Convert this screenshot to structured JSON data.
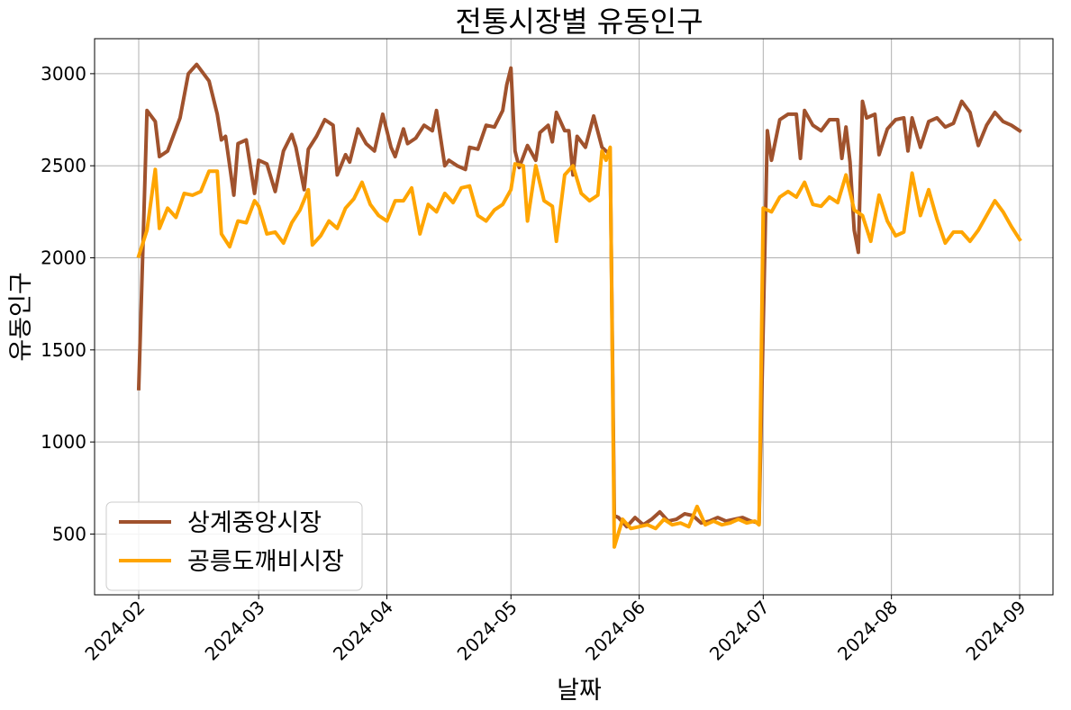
{
  "chart_data": {
    "type": "line",
    "title": "전통시장별 유동인구",
    "xlabel": "날짜",
    "ylabel": "유동인구",
    "x_range": [
      "2024-02-01",
      "2024-09-01"
    ],
    "ylim": [
      170,
      3190
    ],
    "grid": true,
    "legend_position": "lower-left",
    "x_ticks": [
      "2024-02",
      "2024-03",
      "2024-04",
      "2024-05",
      "2024-06",
      "2024-07",
      "2024-08",
      "2024-09"
    ],
    "y_ticks": [
      500,
      1000,
      1500,
      2000,
      2500,
      3000
    ],
    "series": [
      {
        "name": "상계중앙시장",
        "color": "#a0522d",
        "points": [
          [
            "2024-02-01",
            1290
          ],
          [
            "2024-02-03",
            2800
          ],
          [
            "2024-02-05",
            2740
          ],
          [
            "2024-02-06",
            2550
          ],
          [
            "2024-02-08",
            2580
          ],
          [
            "2024-02-11",
            2760
          ],
          [
            "2024-02-13",
            3000
          ],
          [
            "2024-02-15",
            3050
          ],
          [
            "2024-02-18",
            2960
          ],
          [
            "2024-02-20",
            2780
          ],
          [
            "2024-02-21",
            2640
          ],
          [
            "2024-02-22",
            2660
          ],
          [
            "2024-02-24",
            2340
          ],
          [
            "2024-02-25",
            2620
          ],
          [
            "2024-02-27",
            2640
          ],
          [
            "2024-02-29",
            2350
          ],
          [
            "2024-03-01",
            2530
          ],
          [
            "2024-03-03",
            2510
          ],
          [
            "2024-03-05",
            2360
          ],
          [
            "2024-03-07",
            2580
          ],
          [
            "2024-03-09",
            2670
          ],
          [
            "2024-03-10",
            2600
          ],
          [
            "2024-03-12",
            2370
          ],
          [
            "2024-03-13",
            2590
          ],
          [
            "2024-03-15",
            2660
          ],
          [
            "2024-03-17",
            2750
          ],
          [
            "2024-03-19",
            2720
          ],
          [
            "2024-03-20",
            2450
          ],
          [
            "2024-03-22",
            2560
          ],
          [
            "2024-03-23",
            2520
          ],
          [
            "2024-03-25",
            2700
          ],
          [
            "2024-03-27",
            2620
          ],
          [
            "2024-03-29",
            2580
          ],
          [
            "2024-03-31",
            2780
          ],
          [
            "2024-04-02",
            2600
          ],
          [
            "2024-04-03",
            2550
          ],
          [
            "2024-04-05",
            2700
          ],
          [
            "2024-04-06",
            2620
          ],
          [
            "2024-04-08",
            2650
          ],
          [
            "2024-04-10",
            2720
          ],
          [
            "2024-04-12",
            2690
          ],
          [
            "2024-04-13",
            2800
          ],
          [
            "2024-04-15",
            2500
          ],
          [
            "2024-04-16",
            2530
          ],
          [
            "2024-04-18",
            2500
          ],
          [
            "2024-04-20",
            2480
          ],
          [
            "2024-04-21",
            2600
          ],
          [
            "2024-04-23",
            2590
          ],
          [
            "2024-04-25",
            2720
          ],
          [
            "2024-04-27",
            2710
          ],
          [
            "2024-04-29",
            2800
          ],
          [
            "2024-04-30",
            2940
          ],
          [
            "2024-05-01",
            3030
          ],
          [
            "2024-05-02",
            2580
          ],
          [
            "2024-05-03",
            2490
          ],
          [
            "2024-05-05",
            2610
          ],
          [
            "2024-05-07",
            2530
          ],
          [
            "2024-05-08",
            2680
          ],
          [
            "2024-05-10",
            2720
          ],
          [
            "2024-05-11",
            2630
          ],
          [
            "2024-05-12",
            2790
          ],
          [
            "2024-05-14",
            2690
          ],
          [
            "2024-05-15",
            2690
          ],
          [
            "2024-05-16",
            2450
          ],
          [
            "2024-05-17",
            2660
          ],
          [
            "2024-05-19",
            2600
          ],
          [
            "2024-05-21",
            2770
          ],
          [
            "2024-05-23",
            2600
          ],
          [
            "2024-05-24",
            2580
          ],
          [
            "2024-05-25",
            2560
          ],
          [
            "2024-05-26",
            600
          ],
          [
            "2024-05-27",
            590
          ],
          [
            "2024-05-29",
            540
          ],
          [
            "2024-05-31",
            590
          ],
          [
            "2024-06-02",
            550
          ],
          [
            "2024-06-04",
            580
          ],
          [
            "2024-06-06",
            620
          ],
          [
            "2024-06-08",
            570
          ],
          [
            "2024-06-10",
            580
          ],
          [
            "2024-06-12",
            610
          ],
          [
            "2024-06-14",
            600
          ],
          [
            "2024-06-16",
            560
          ],
          [
            "2024-06-18",
            570
          ],
          [
            "2024-06-20",
            590
          ],
          [
            "2024-06-22",
            570
          ],
          [
            "2024-06-24",
            580
          ],
          [
            "2024-06-26",
            590
          ],
          [
            "2024-06-28",
            570
          ],
          [
            "2024-06-30",
            560
          ],
          [
            "2024-07-02",
            2690
          ],
          [
            "2024-07-03",
            2530
          ],
          [
            "2024-07-05",
            2750
          ],
          [
            "2024-07-07",
            2780
          ],
          [
            "2024-07-09",
            2780
          ],
          [
            "2024-07-10",
            2540
          ],
          [
            "2024-07-11",
            2800
          ],
          [
            "2024-07-13",
            2720
          ],
          [
            "2024-07-15",
            2690
          ],
          [
            "2024-07-17",
            2750
          ],
          [
            "2024-07-19",
            2750
          ],
          [
            "2024-07-20",
            2540
          ],
          [
            "2024-07-21",
            2710
          ],
          [
            "2024-07-22",
            2520
          ],
          [
            "2024-07-23",
            2150
          ],
          [
            "2024-07-24",
            2030
          ],
          [
            "2024-07-25",
            2850
          ],
          [
            "2024-07-26",
            2760
          ],
          [
            "2024-07-28",
            2780
          ],
          [
            "2024-07-29",
            2560
          ],
          [
            "2024-07-31",
            2700
          ],
          [
            "2024-08-02",
            2750
          ],
          [
            "2024-08-04",
            2760
          ],
          [
            "2024-08-05",
            2580
          ],
          [
            "2024-08-06",
            2760
          ],
          [
            "2024-08-08",
            2600
          ],
          [
            "2024-08-10",
            2740
          ],
          [
            "2024-08-12",
            2760
          ],
          [
            "2024-08-14",
            2710
          ],
          [
            "2024-08-16",
            2730
          ],
          [
            "2024-08-18",
            2850
          ],
          [
            "2024-08-20",
            2790
          ],
          [
            "2024-08-22",
            2610
          ],
          [
            "2024-08-24",
            2720
          ],
          [
            "2024-08-26",
            2790
          ],
          [
            "2024-08-28",
            2740
          ],
          [
            "2024-08-30",
            2720
          ],
          [
            "2024-09-01",
            2690
          ]
        ]
      },
      {
        "name": "공릉도깨비시장",
        "color": "#ffa500",
        "points": [
          [
            "2024-02-01",
            2010
          ],
          [
            "2024-02-03",
            2150
          ],
          [
            "2024-02-05",
            2480
          ],
          [
            "2024-02-06",
            2160
          ],
          [
            "2024-02-08",
            2270
          ],
          [
            "2024-02-10",
            2220
          ],
          [
            "2024-02-12",
            2350
          ],
          [
            "2024-02-14",
            2340
          ],
          [
            "2024-02-16",
            2360
          ],
          [
            "2024-02-18",
            2470
          ],
          [
            "2024-02-20",
            2470
          ],
          [
            "2024-02-21",
            2130
          ],
          [
            "2024-02-23",
            2060
          ],
          [
            "2024-02-25",
            2200
          ],
          [
            "2024-02-27",
            2190
          ],
          [
            "2024-02-29",
            2310
          ],
          [
            "2024-03-01",
            2280
          ],
          [
            "2024-03-03",
            2130
          ],
          [
            "2024-03-05",
            2140
          ],
          [
            "2024-03-07",
            2080
          ],
          [
            "2024-03-09",
            2190
          ],
          [
            "2024-03-11",
            2260
          ],
          [
            "2024-03-13",
            2370
          ],
          [
            "2024-03-14",
            2070
          ],
          [
            "2024-03-16",
            2120
          ],
          [
            "2024-03-18",
            2200
          ],
          [
            "2024-03-20",
            2160
          ],
          [
            "2024-03-22",
            2270
          ],
          [
            "2024-03-24",
            2320
          ],
          [
            "2024-03-26",
            2410
          ],
          [
            "2024-03-28",
            2290
          ],
          [
            "2024-03-30",
            2230
          ],
          [
            "2024-04-01",
            2200
          ],
          [
            "2024-04-03",
            2310
          ],
          [
            "2024-04-05",
            2310
          ],
          [
            "2024-04-07",
            2380
          ],
          [
            "2024-04-09",
            2130
          ],
          [
            "2024-04-11",
            2290
          ],
          [
            "2024-04-13",
            2250
          ],
          [
            "2024-04-15",
            2350
          ],
          [
            "2024-04-17",
            2300
          ],
          [
            "2024-04-19",
            2380
          ],
          [
            "2024-04-21",
            2390
          ],
          [
            "2024-04-23",
            2230
          ],
          [
            "2024-04-25",
            2200
          ],
          [
            "2024-04-27",
            2260
          ],
          [
            "2024-04-29",
            2290
          ],
          [
            "2024-05-01",
            2370
          ],
          [
            "2024-05-02",
            2510
          ],
          [
            "2024-05-04",
            2500
          ],
          [
            "2024-05-05",
            2200
          ],
          [
            "2024-05-07",
            2500
          ],
          [
            "2024-05-09",
            2310
          ],
          [
            "2024-05-11",
            2280
          ],
          [
            "2024-05-12",
            2090
          ],
          [
            "2024-05-14",
            2450
          ],
          [
            "2024-05-16",
            2500
          ],
          [
            "2024-05-18",
            2350
          ],
          [
            "2024-05-20",
            2310
          ],
          [
            "2024-05-22",
            2340
          ],
          [
            "2024-05-23",
            2580
          ],
          [
            "2024-05-24",
            2530
          ],
          [
            "2024-05-25",
            2600
          ],
          [
            "2024-05-26",
            430
          ],
          [
            "2024-05-28",
            580
          ],
          [
            "2024-05-30",
            530
          ],
          [
            "2024-06-01",
            540
          ],
          [
            "2024-06-03",
            550
          ],
          [
            "2024-06-05",
            530
          ],
          [
            "2024-06-07",
            580
          ],
          [
            "2024-06-09",
            550
          ],
          [
            "2024-06-11",
            560
          ],
          [
            "2024-06-13",
            540
          ],
          [
            "2024-06-15",
            650
          ],
          [
            "2024-06-17",
            550
          ],
          [
            "2024-06-19",
            570
          ],
          [
            "2024-06-21",
            550
          ],
          [
            "2024-06-23",
            560
          ],
          [
            "2024-06-25",
            580
          ],
          [
            "2024-06-27",
            560
          ],
          [
            "2024-06-29",
            570
          ],
          [
            "2024-06-30",
            550
          ],
          [
            "2024-07-01",
            2270
          ],
          [
            "2024-07-03",
            2250
          ],
          [
            "2024-07-05",
            2330
          ],
          [
            "2024-07-07",
            2360
          ],
          [
            "2024-07-09",
            2330
          ],
          [
            "2024-07-11",
            2410
          ],
          [
            "2024-07-13",
            2290
          ],
          [
            "2024-07-15",
            2280
          ],
          [
            "2024-07-17",
            2330
          ],
          [
            "2024-07-19",
            2300
          ],
          [
            "2024-07-21",
            2450
          ],
          [
            "2024-07-23",
            2260
          ],
          [
            "2024-07-25",
            2230
          ],
          [
            "2024-07-27",
            2090
          ],
          [
            "2024-07-29",
            2340
          ],
          [
            "2024-07-31",
            2200
          ],
          [
            "2024-08-02",
            2120
          ],
          [
            "2024-08-04",
            2140
          ],
          [
            "2024-08-06",
            2460
          ],
          [
            "2024-08-08",
            2230
          ],
          [
            "2024-08-10",
            2370
          ],
          [
            "2024-08-12",
            2210
          ],
          [
            "2024-08-14",
            2080
          ],
          [
            "2024-08-16",
            2140
          ],
          [
            "2024-08-18",
            2140
          ],
          [
            "2024-08-20",
            2090
          ],
          [
            "2024-08-22",
            2150
          ],
          [
            "2024-08-24",
            2230
          ],
          [
            "2024-08-26",
            2310
          ],
          [
            "2024-08-28",
            2250
          ],
          [
            "2024-08-30",
            2170
          ],
          [
            "2024-09-01",
            2100
          ]
        ]
      }
    ]
  }
}
